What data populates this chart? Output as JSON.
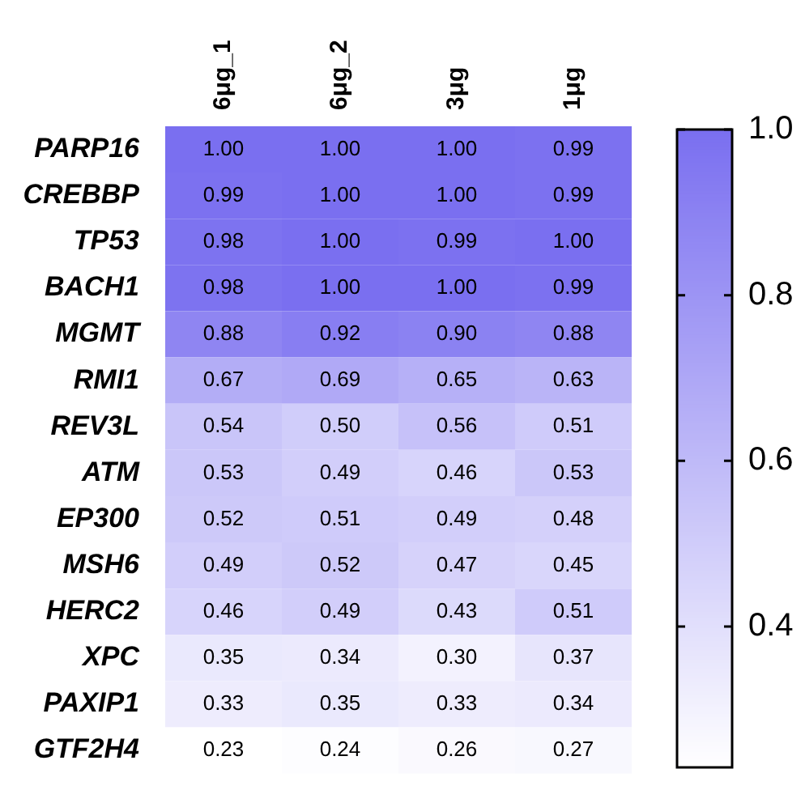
{
  "chart_data": {
    "type": "heatmap",
    "categories": [
      "6μg_1",
      "6μg_2",
      "3μg",
      "1μg"
    ],
    "y_categories": [
      "PARP16",
      "CREBBP",
      "TP53",
      "BACH1",
      "MGMT",
      "RMI1",
      "REV3L",
      "ATM",
      "EP300",
      "MSH6",
      "HERC2",
      "XPC",
      "PAXIP1",
      "GTF2H4"
    ],
    "cells": [
      [
        1.0,
        1.0,
        1.0,
        0.99
      ],
      [
        0.99,
        1.0,
        1.0,
        0.99
      ],
      [
        0.98,
        1.0,
        0.99,
        1.0
      ],
      [
        0.98,
        1.0,
        1.0,
        0.99
      ],
      [
        0.88,
        0.92,
        0.9,
        0.88
      ],
      [
        0.67,
        0.69,
        0.65,
        0.63
      ],
      [
        0.54,
        0.5,
        0.56,
        0.51
      ],
      [
        0.53,
        0.49,
        0.46,
        0.53
      ],
      [
        0.52,
        0.51,
        0.49,
        0.48
      ],
      [
        0.49,
        0.52,
        0.47,
        0.45
      ],
      [
        0.46,
        0.49,
        0.43,
        0.51
      ],
      [
        0.35,
        0.34,
        0.3,
        0.37
      ],
      [
        0.33,
        0.35,
        0.33,
        0.34
      ],
      [
        0.23,
        0.24,
        0.26,
        0.27
      ]
    ],
    "cell_labels": [
      [
        "1.00",
        "1.00",
        "1.00",
        "0.99"
      ],
      [
        "0.99",
        "1.00",
        "1.00",
        "0.99"
      ],
      [
        "0.98",
        "1.00",
        "0.99",
        "1.00"
      ],
      [
        "0.98",
        "1.00",
        "1.00",
        "0.99"
      ],
      [
        "0.88",
        "0.92",
        "0.90",
        "0.88"
      ],
      [
        "0.67",
        "0.69",
        "0.65",
        "0.63"
      ],
      [
        "0.54",
        "0.50",
        "0.56",
        "0.51"
      ],
      [
        "0.53",
        "0.49",
        "0.46",
        "0.53"
      ],
      [
        "0.52",
        "0.51",
        "0.49",
        "0.48"
      ],
      [
        "0.49",
        "0.52",
        "0.47",
        "0.45"
      ],
      [
        "0.46",
        "0.49",
        "0.43",
        "0.51"
      ],
      [
        "0.35",
        "0.34",
        "0.30",
        "0.37"
      ],
      [
        "0.33",
        "0.35",
        "0.33",
        "0.34"
      ],
      [
        "0.23",
        "0.24",
        "0.26",
        "0.27"
      ]
    ],
    "colors": [
      "#ffffff",
      "#7a6ff0"
    ],
    "clim": [
      0.23,
      1.0
    ],
    "cticks": [
      0.4,
      0.6,
      0.8,
      {
        "value": 1.0,
        "label": "1.0"
      }
    ]
  }
}
